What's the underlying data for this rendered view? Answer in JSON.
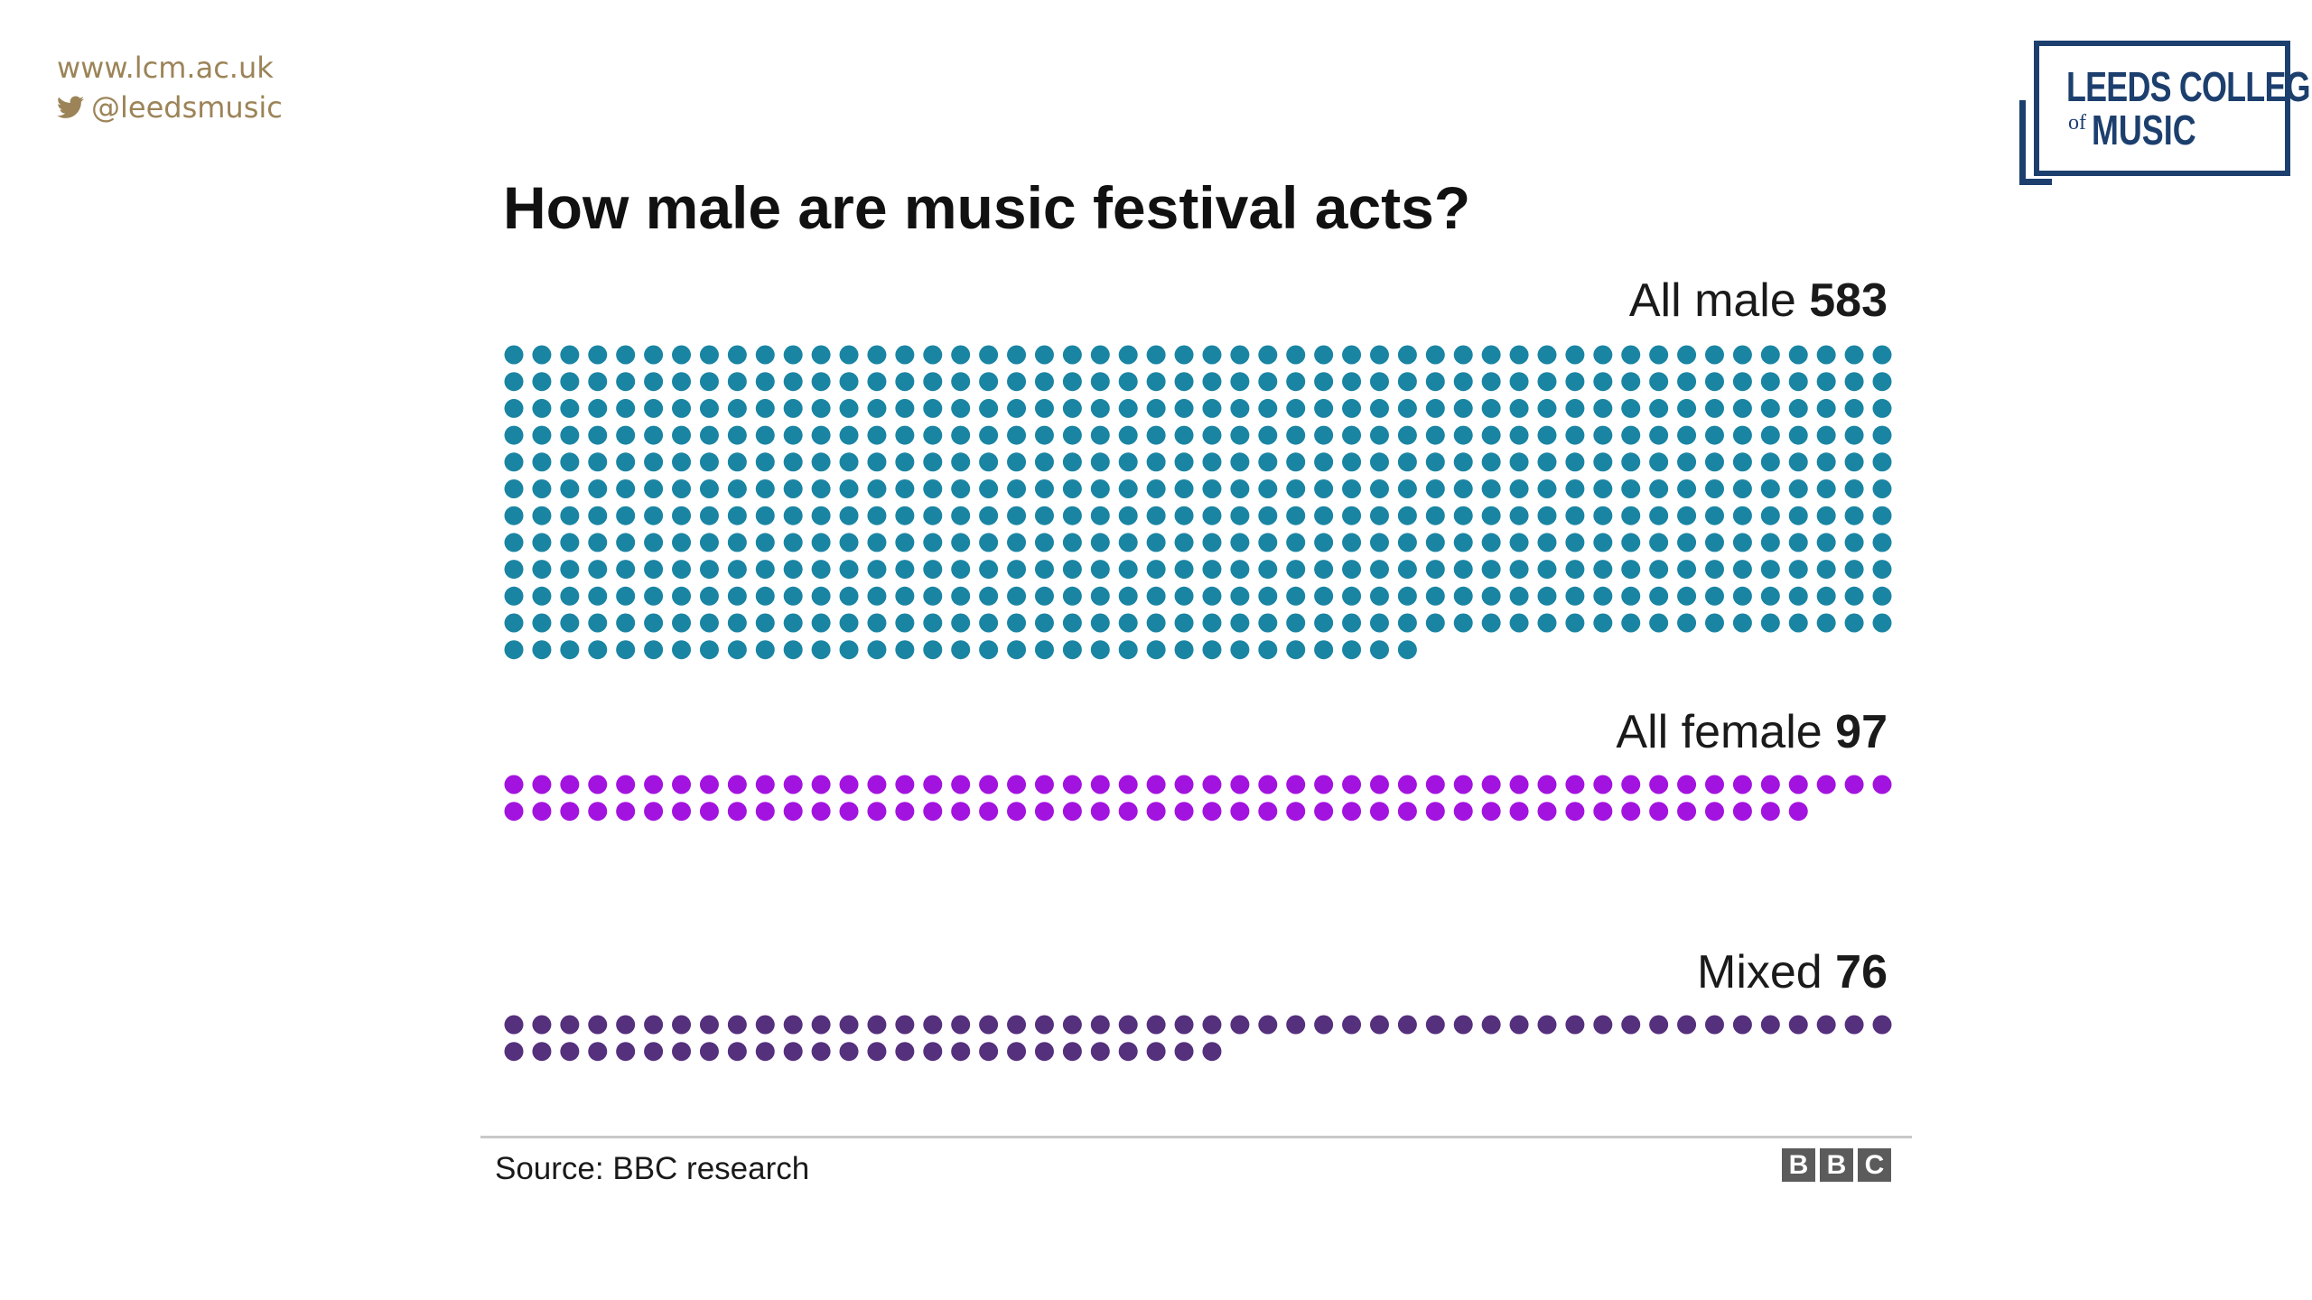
{
  "site": {
    "url": "www.lcm.ac.uk",
    "twitter": "@leedsmusic"
  },
  "logo": {
    "line1": "LEEDS COLLEGE",
    "of": "of",
    "line2": "MUSIC",
    "color": "#1c3f6e"
  },
  "chart_data": {
    "type": "waffle",
    "title": "How male are music festival acts?",
    "units_per_row": 50,
    "series": [
      {
        "name": "All male",
        "value": 583,
        "color": "#1a85a3"
      },
      {
        "name": "All female",
        "value": 97,
        "color": "#a313e0"
      },
      {
        "name": "Mixed",
        "value": 76,
        "color": "#55307d"
      }
    ],
    "fill_order": "rows bottom-up, last row left-aligned"
  },
  "footer": {
    "source": "Source: BBC research",
    "brand_letters": [
      "B",
      "B",
      "C"
    ]
  },
  "icons": {
    "twitter": "twitter-bird-icon"
  }
}
